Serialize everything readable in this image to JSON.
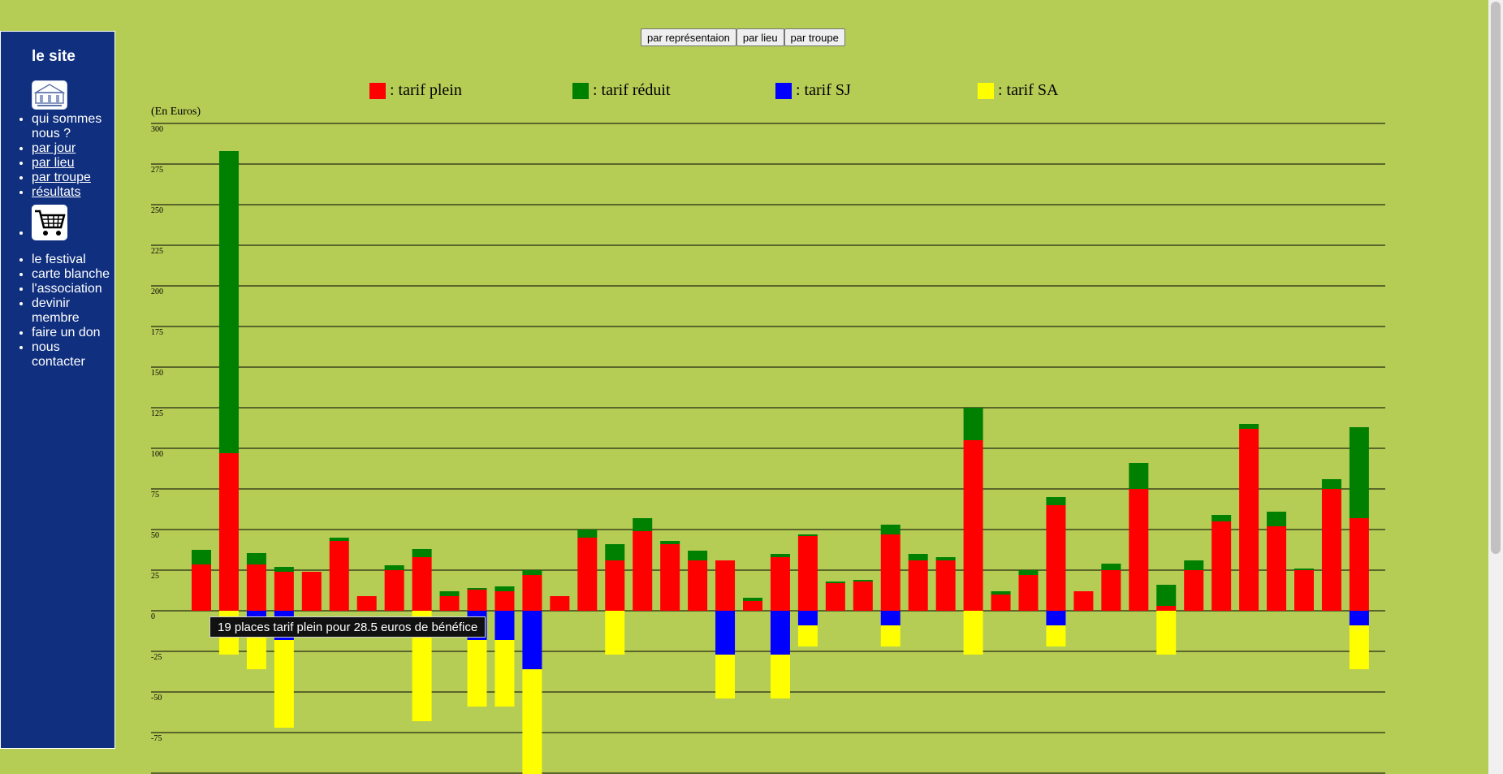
{
  "sidebar": {
    "title": "le site",
    "menu1": [
      {
        "label": "qui sommes nous ?",
        "link": false
      },
      {
        "label": "par jour",
        "link": true
      },
      {
        "label": "par lieu",
        "link": true
      },
      {
        "label": "par troupe",
        "link": true
      },
      {
        "label": "résultats",
        "link": true
      }
    ],
    "menu2": [
      {
        "label": "le festival"
      },
      {
        "label": "carte blanche"
      },
      {
        "label": "l'association"
      },
      {
        "label": "devinir membre"
      },
      {
        "label": "faire un don"
      },
      {
        "label": "nous contacter"
      }
    ],
    "logo_icon": "festival-logo-icon",
    "cart_icon": "shopping-cart-icon"
  },
  "buttons": {
    "par_representation": "par représentaion",
    "par_lieu": "par lieu",
    "par_troupe": "par troupe"
  },
  "legend": [
    {
      "label": ": tarif plein",
      "color": "#ff0000"
    },
    {
      "label": ": tarif réduit",
      "color": "#008000"
    },
    {
      "label": ": tarif SJ",
      "color": "#0000ff"
    },
    {
      "label": ": tarif SA",
      "color": "#ffff00"
    }
  ],
  "tooltip": "19 places tarif plein pour 28.5 euros de bénéfice",
  "chart_data": {
    "type": "bar",
    "stacked": true,
    "ylabel": "(En Euros)",
    "ylim": [
      -100,
      300
    ],
    "yticks": [
      300,
      275,
      250,
      225,
      200,
      175,
      150,
      125,
      100,
      75,
      50,
      25,
      0,
      -25,
      -50,
      -75
    ],
    "grid": true,
    "legend_position": "top",
    "positive_series": [
      {
        "name": "tarif plein",
        "color": "#ff0000",
        "values": [
          28.5,
          97,
          28.5,
          24,
          24,
          43,
          9,
          25,
          33,
          9,
          13,
          12,
          22,
          9,
          45,
          31,
          49,
          41,
          31,
          31,
          6,
          33,
          46,
          17,
          18,
          47,
          31,
          31,
          105,
          10,
          22,
          65,
          12,
          25,
          75,
          3,
          25,
          55,
          112,
          52,
          25,
          75,
          57
        ]
      },
      {
        "name": "tarif réduit",
        "color": "#008000",
        "values": [
          9,
          186,
          7,
          3,
          0,
          2,
          0,
          3,
          5,
          3,
          1,
          3,
          3,
          0,
          5,
          10,
          8,
          2,
          6,
          0,
          2,
          2,
          1,
          1,
          1,
          6,
          4,
          2,
          20,
          2,
          3,
          5,
          0,
          4,
          16,
          13,
          6,
          4,
          3,
          9,
          1,
          6,
          56
        ]
      }
    ],
    "negative_series": [
      {
        "name": "tarif SJ",
        "color": "#0000ff",
        "values": [
          0,
          0,
          -4,
          -18,
          0,
          0,
          0,
          0,
          0,
          0,
          -18,
          -18,
          -36,
          0,
          0,
          0,
          0,
          0,
          0,
          -27,
          0,
          -27,
          -9,
          0,
          0,
          -9,
          0,
          0,
          0,
          0,
          0,
          -9,
          0,
          0,
          0,
          0,
          0,
          0,
          0,
          0,
          0,
          0,
          -9
        ]
      },
      {
        "name": "tarif SA",
        "color": "#ffff00",
        "values": [
          0,
          -27,
          -32,
          -54,
          0,
          0,
          0,
          0,
          -68,
          0,
          -41,
          -41,
          -72,
          0,
          0,
          -27,
          0,
          0,
          0,
          -27,
          0,
          -27,
          -13,
          0,
          0,
          -13,
          0,
          0,
          -27,
          0,
          0,
          -13,
          0,
          0,
          0,
          -27,
          0,
          0,
          0,
          0,
          0,
          0,
          -27
        ]
      }
    ]
  }
}
